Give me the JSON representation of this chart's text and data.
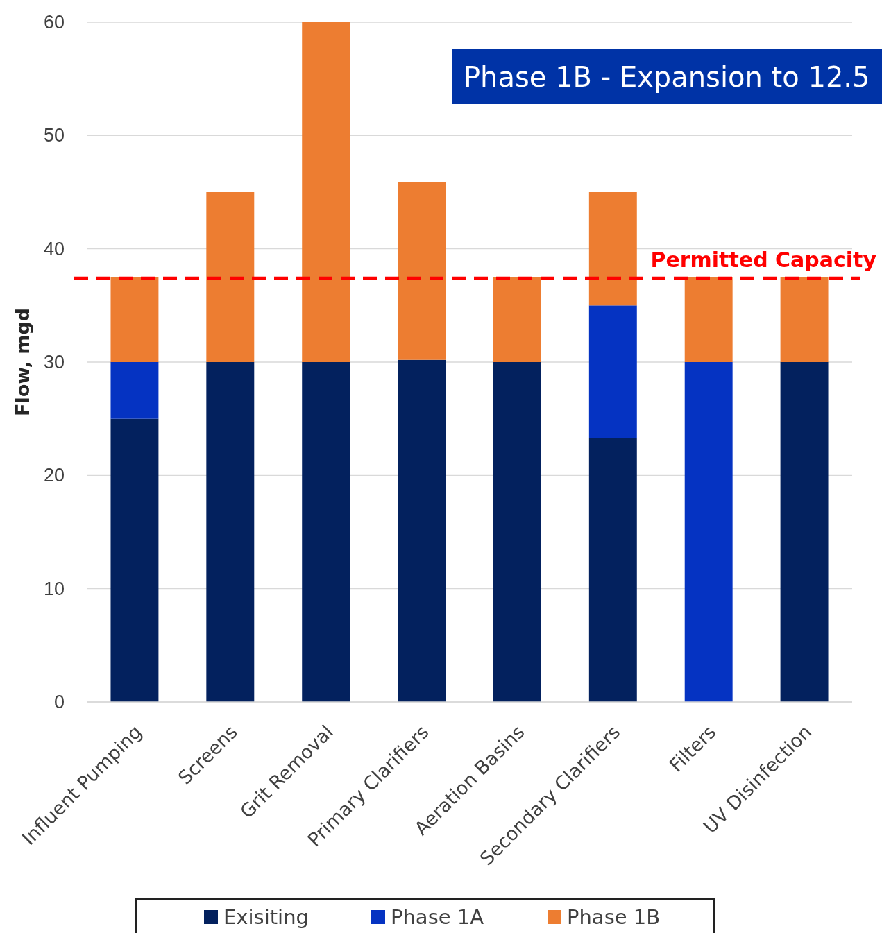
{
  "chart_data": {
    "type": "bar",
    "title": "Phase 1B - Expansion to 12.5",
    "ylabel": "Flow, mgd",
    "stacked": true,
    "categories": [
      "Influent Pumping",
      "Screens",
      "Grit Removal",
      "Primary Clarifiers",
      "Aeration Basins",
      "Secondary Clarifiers",
      "Filters",
      "UV Disinfection"
    ],
    "series": [
      {
        "name": "Exisiting",
        "color": "#03215e",
        "values": [
          25,
          30,
          30,
          30.2,
          30,
          23.3,
          0,
          30
        ]
      },
      {
        "name": "Phase 1A",
        "color": "#0533c2",
        "values": [
          5,
          0,
          0,
          0,
          0,
          11.7,
          30,
          0
        ]
      },
      {
        "name": "Phase 1B",
        "color": "#ed7d31",
        "values": [
          7.5,
          15,
          30,
          15.7,
          7.5,
          10,
          7.5,
          7.5
        ]
      }
    ],
    "ylim": [
      0,
      60
    ],
    "yticks": [
      0,
      10,
      20,
      30,
      40,
      50,
      60
    ],
    "grid": "y",
    "legend": "bottom",
    "ref_lines": [
      {
        "axis": "y",
        "value": 37.4,
        "label": "Permitted Capacity",
        "color": "#ff0000",
        "line_style": "dashed"
      }
    ]
  }
}
